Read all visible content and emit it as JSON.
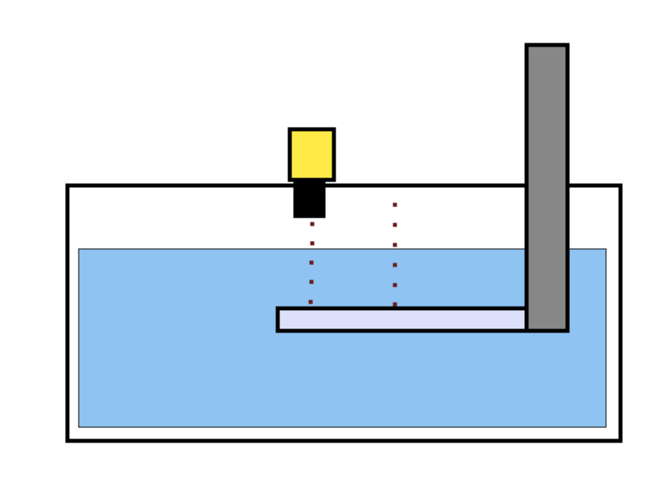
{
  "diagram": {
    "colors": {
      "background": "#ffffff",
      "outline": "#000000",
      "liquid": "#8ec3f2",
      "platform": "#dde0fa",
      "arm": "#878787",
      "sensor_head": "#ffea48",
      "sensor_body": "#000000",
      "beam": "#6b1e1e"
    },
    "labels": {}
  }
}
